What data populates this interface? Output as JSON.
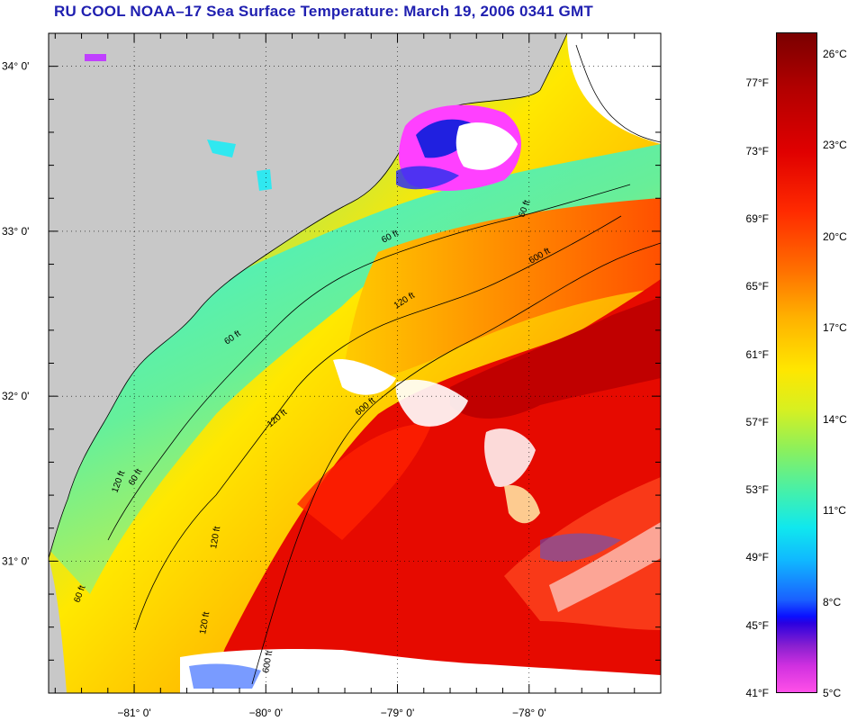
{
  "title": "RU COOL  NOAA–17  Sea Surface Temperature:  March 19, 2006 0341 GMT",
  "map": {
    "lat_labels": [
      "34° 0'",
      "33° 0'",
      "32° 0'",
      "31° 0'"
    ],
    "lon_labels": [
      "−81° 0'",
      "−80° 0'",
      "−79° 0'",
      "−78° 0'"
    ],
    "lat_values": [
      34,
      33,
      32,
      31
    ],
    "lon_values": [
      -81,
      -80,
      -79,
      -78
    ],
    "isobaths": [
      "60 ft",
      "60 ft",
      "120 ft",
      "600 ft",
      "60 ft",
      "120 ft",
      "600 ft",
      "60 ft",
      "120 ft",
      "120 ft",
      "60 ft",
      "120 ft",
      "600 ft"
    ],
    "land_color": "#c8c8c8",
    "cloud_color": "#ffffff"
  },
  "colorbar": {
    "fahrenheit": [
      "77°F",
      "73°F",
      "69°F",
      "65°F",
      "61°F",
      "57°F",
      "53°F",
      "49°F",
      "45°F",
      "41°F"
    ],
    "celsius": [
      "26°C",
      "23°C",
      "20°C",
      "17°C",
      "14°C",
      "11°C",
      "8°C",
      "5°C"
    ],
    "f_min": 41,
    "f_max": 80,
    "c_min": 5,
    "c_max": 26.7
  }
}
